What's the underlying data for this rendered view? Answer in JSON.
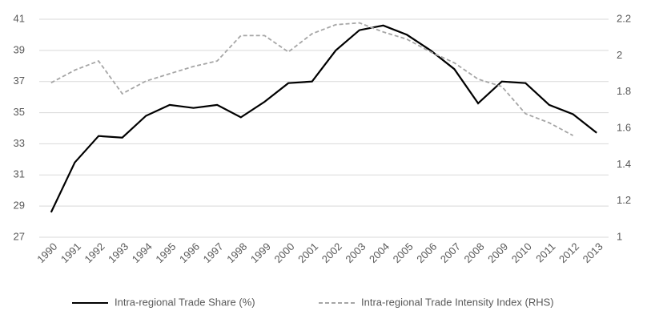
{
  "chart_data": {
    "type": "line",
    "categories": [
      "1990",
      "1991",
      "1992",
      "1993",
      "1994",
      "1995",
      "1996",
      "1997",
      "1998",
      "1999",
      "2000",
      "2001",
      "2002",
      "2003",
      "2004",
      "2005",
      "2006",
      "2007",
      "2008",
      "2009",
      "2010",
      "2011",
      "2012",
      "2013"
    ],
    "series": [
      {
        "name": "Intra-regional Trade Share (%)",
        "color": "#000000",
        "dash": false,
        "values": [
          28.6,
          31.8,
          33.5,
          33.4,
          34.8,
          35.5,
          35.3,
          35.5,
          34.7,
          35.7,
          36.9,
          37.0,
          39.0,
          40.3,
          40.6,
          40.0,
          39.0,
          37.8,
          35.6,
          37.0,
          36.9,
          35.5,
          34.9,
          33.7
        ]
      },
      {
        "name": "Intra-regional Trade Intensity Index (RHS)",
        "color": "#a6a6a6",
        "dash": true,
        "axis": "y2",
        "values": [
          1.85,
          1.92,
          1.97,
          1.79,
          1.86,
          1.9,
          1.94,
          1.97,
          2.11,
          2.11,
          2.02,
          2.12,
          2.17,
          2.18,
          2.13,
          2.09,
          2.02,
          1.96,
          1.87,
          1.83,
          1.68,
          1.63,
          1.56,
          null
        ]
      }
    ],
    "ylim": [
      27,
      41
    ],
    "yticks": [
      27,
      29,
      31,
      33,
      35,
      37,
      39,
      41
    ],
    "y2lim": [
      1,
      2.2
    ],
    "y2ticks": [
      1,
      1.2,
      1.4,
      1.6,
      1.8,
      2,
      2.2
    ],
    "grid": true,
    "legend": "bottom"
  }
}
